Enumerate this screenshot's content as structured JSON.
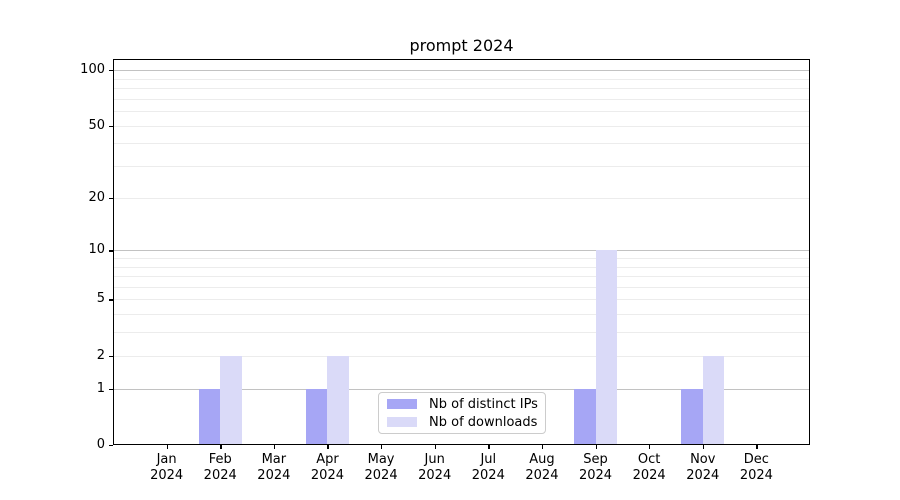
{
  "chart_data": {
    "type": "bar",
    "title": "prompt 2024",
    "months": [
      "Jan",
      "Feb",
      "Mar",
      "Apr",
      "May",
      "Jun",
      "Jul",
      "Aug",
      "Sep",
      "Oct",
      "Nov",
      "Dec"
    ],
    "year_label": "2024",
    "series": [
      {
        "name": "Nb of distinct IPs",
        "color": "#a6a6f5",
        "values": [
          0,
          1,
          0,
          1,
          0,
          0,
          0,
          0,
          1,
          0,
          1,
          0
        ]
      },
      {
        "name": "Nb of downloads",
        "color": "#dadaf8",
        "values": [
          0,
          2,
          0,
          2,
          0,
          0,
          0,
          0,
          10,
          0,
          2,
          0
        ]
      }
    ],
    "y_axis": {
      "scale": "log10(1+y)",
      "ticks": [
        100,
        50,
        20,
        10,
        5,
        2,
        1,
        0
      ],
      "major_gridlines": [
        1,
        10,
        100
      ],
      "minor_gridlines": [
        2,
        3,
        4,
        5,
        6,
        7,
        8,
        9,
        20,
        30,
        40,
        50,
        60,
        70,
        80,
        90
      ],
      "ylim": [
        0,
        115
      ]
    },
    "legend": {
      "position": "lower center",
      "entries": [
        "Nb of distinct IPs",
        "Nb of downloads"
      ]
    },
    "grid": true
  }
}
